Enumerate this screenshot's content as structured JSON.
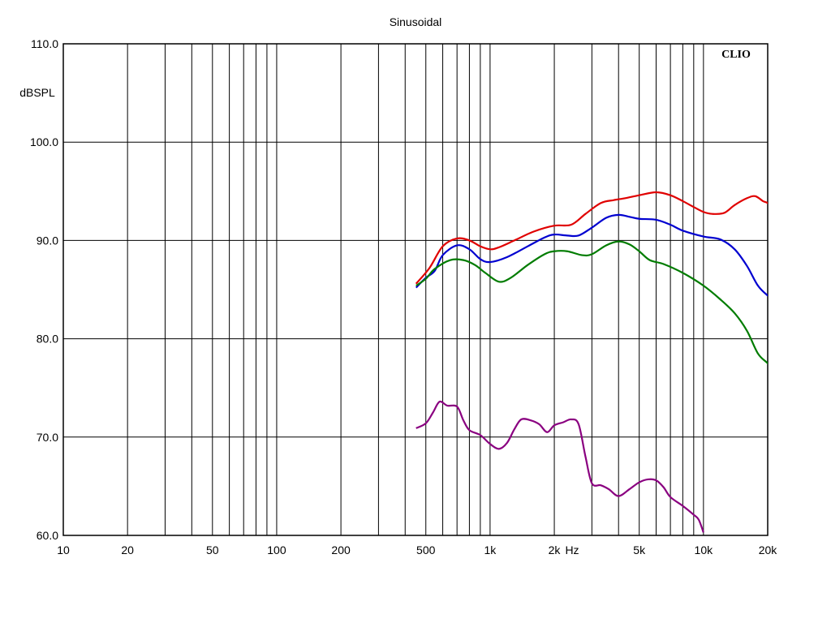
{
  "chart_data": {
    "type": "line",
    "title": "Sinusoidal",
    "ylabel": "dBSPL",
    "xlabel": "Hz",
    "brand": "CLIO",
    "x_scale": "log",
    "xlim": [
      10,
      20000
    ],
    "ylim": [
      60,
      110
    ],
    "grid": true,
    "x_ticks": [
      {
        "value": 10,
        "label": "10"
      },
      {
        "value": 20,
        "label": "20"
      },
      {
        "value": 50,
        "label": "50"
      },
      {
        "value": 100,
        "label": "100"
      },
      {
        "value": 200,
        "label": "200"
      },
      {
        "value": 500,
        "label": "500"
      },
      {
        "value": 1000,
        "label": "1k"
      },
      {
        "value": 2000,
        "label": "2k"
      },
      {
        "value": 5000,
        "label": "5k"
      },
      {
        "value": 10000,
        "label": "10k"
      },
      {
        "value": 20000,
        "label": "20k"
      }
    ],
    "y_ticks": [
      {
        "value": 110,
        "label": "110.0"
      },
      {
        "value": 100,
        "label": "100.0"
      },
      {
        "value": 90,
        "label": "90.0"
      },
      {
        "value": 80,
        "label": "80.0"
      },
      {
        "value": 70,
        "label": "70.0"
      },
      {
        "value": 60,
        "label": "60.0"
      }
    ],
    "series": [
      {
        "color": "#e00000",
        "points": [
          [
            450,
            85.6
          ],
          [
            520,
            87.2
          ],
          [
            600,
            89.4
          ],
          [
            700,
            90.2
          ],
          [
            800,
            90.0
          ],
          [
            900,
            89.4
          ],
          [
            1000,
            89.1
          ],
          [
            1100,
            89.3
          ],
          [
            1300,
            90.0
          ],
          [
            1600,
            90.9
          ],
          [
            2000,
            91.5
          ],
          [
            2400,
            91.6
          ],
          [
            2800,
            92.7
          ],
          [
            3300,
            93.8
          ],
          [
            3800,
            94.1
          ],
          [
            4300,
            94.3
          ],
          [
            5000,
            94.6
          ],
          [
            6000,
            94.9
          ],
          [
            7000,
            94.6
          ],
          [
            8000,
            94.0
          ],
          [
            9000,
            93.4
          ],
          [
            10000,
            92.9
          ],
          [
            11000,
            92.7
          ],
          [
            12500,
            92.8
          ],
          [
            14000,
            93.6
          ],
          [
            16000,
            94.3
          ],
          [
            17500,
            94.5
          ],
          [
            19000,
            94.0
          ],
          [
            20000,
            93.8
          ],
          [
            22000,
            93.1
          ]
        ]
      },
      {
        "color": "#0000d0",
        "points": [
          [
            450,
            85.2
          ],
          [
            500,
            86.2
          ],
          [
            550,
            86.9
          ],
          [
            600,
            88.5
          ],
          [
            700,
            89.5
          ],
          [
            800,
            89.1
          ],
          [
            900,
            88.1
          ],
          [
            1000,
            87.8
          ],
          [
            1200,
            88.3
          ],
          [
            1500,
            89.4
          ],
          [
            1800,
            90.3
          ],
          [
            2000,
            90.6
          ],
          [
            2300,
            90.5
          ],
          [
            2600,
            90.5
          ],
          [
            3000,
            91.3
          ],
          [
            3500,
            92.3
          ],
          [
            4000,
            92.6
          ],
          [
            4500,
            92.4
          ],
          [
            5000,
            92.2
          ],
          [
            6000,
            92.1
          ],
          [
            7000,
            91.6
          ],
          [
            8000,
            91.0
          ],
          [
            10000,
            90.4
          ],
          [
            12000,
            90.1
          ],
          [
            14000,
            89.1
          ],
          [
            16000,
            87.4
          ],
          [
            18000,
            85.4
          ],
          [
            20000,
            84.4
          ],
          [
            22000,
            83.8
          ]
        ]
      },
      {
        "color": "#007c00",
        "points": [
          [
            450,
            85.4
          ],
          [
            500,
            86.1
          ],
          [
            550,
            87.1
          ],
          [
            650,
            88.0
          ],
          [
            750,
            88.0
          ],
          [
            850,
            87.5
          ],
          [
            950,
            86.7
          ],
          [
            1100,
            85.8
          ],
          [
            1250,
            86.2
          ],
          [
            1500,
            87.5
          ],
          [
            1800,
            88.6
          ],
          [
            2000,
            88.9
          ],
          [
            2300,
            88.9
          ],
          [
            2700,
            88.5
          ],
          [
            3000,
            88.6
          ],
          [
            3500,
            89.5
          ],
          [
            4000,
            89.9
          ],
          [
            4500,
            89.6
          ],
          [
            5000,
            88.9
          ],
          [
            5600,
            88.0
          ],
          [
            6500,
            87.6
          ],
          [
            8000,
            86.7
          ],
          [
            10000,
            85.4
          ],
          [
            12000,
            84.0
          ],
          [
            14000,
            82.6
          ],
          [
            16000,
            80.8
          ],
          [
            18000,
            78.5
          ],
          [
            20000,
            77.5
          ],
          [
            22000,
            76.5
          ]
        ]
      },
      {
        "color": "#8a0080",
        "points": [
          [
            450,
            70.9
          ],
          [
            500,
            71.4
          ],
          [
            540,
            72.5
          ],
          [
            580,
            73.6
          ],
          [
            630,
            73.2
          ],
          [
            700,
            73.1
          ],
          [
            750,
            71.7
          ],
          [
            800,
            70.7
          ],
          [
            900,
            70.2
          ],
          [
            1000,
            69.3
          ],
          [
            1100,
            68.8
          ],
          [
            1200,
            69.4
          ],
          [
            1300,
            70.8
          ],
          [
            1400,
            71.8
          ],
          [
            1550,
            71.7
          ],
          [
            1700,
            71.3
          ],
          [
            1850,
            70.5
          ],
          [
            2000,
            71.2
          ],
          [
            2200,
            71.5
          ],
          [
            2400,
            71.8
          ],
          [
            2600,
            71.3
          ],
          [
            2800,
            68.0
          ],
          [
            3000,
            65.3
          ],
          [
            3300,
            65.1
          ],
          [
            3600,
            64.7
          ],
          [
            4000,
            64.0
          ],
          [
            4500,
            64.7
          ],
          [
            5000,
            65.4
          ],
          [
            5500,
            65.7
          ],
          [
            6000,
            65.6
          ],
          [
            6500,
            64.9
          ],
          [
            7000,
            63.9
          ],
          [
            8000,
            63.0
          ],
          [
            9000,
            62.1
          ],
          [
            9500,
            61.6
          ],
          [
            10000,
            60.3
          ]
        ]
      }
    ]
  }
}
